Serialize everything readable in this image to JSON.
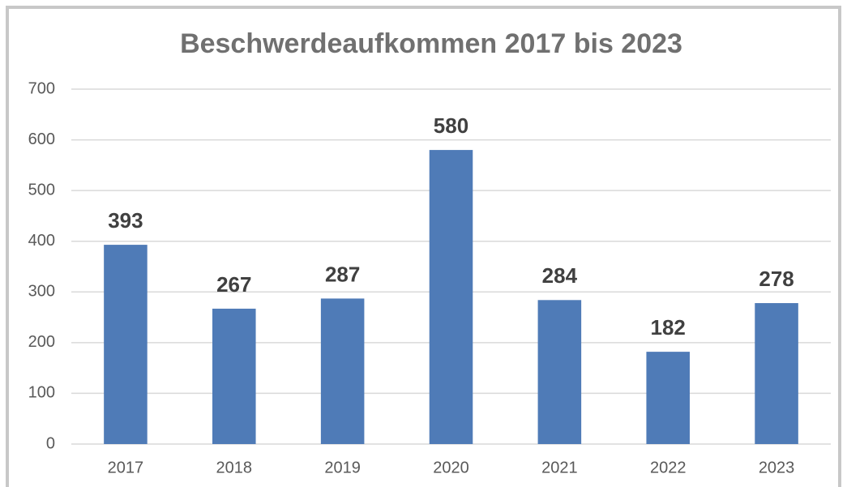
{
  "chart_data": {
    "type": "bar",
    "title": "Beschwerdeaufkommen 2017 bis 2023",
    "categories": [
      "2017",
      "2018",
      "2019",
      "2020",
      "2021",
      "2022",
      "2023"
    ],
    "values": [
      393,
      267,
      287,
      580,
      284,
      182,
      278
    ],
    "color": "#4f7bb7",
    "ylim": [
      0,
      700
    ],
    "yticks": [
      0,
      100,
      200,
      300,
      400,
      500,
      600,
      700
    ],
    "grid": true
  }
}
